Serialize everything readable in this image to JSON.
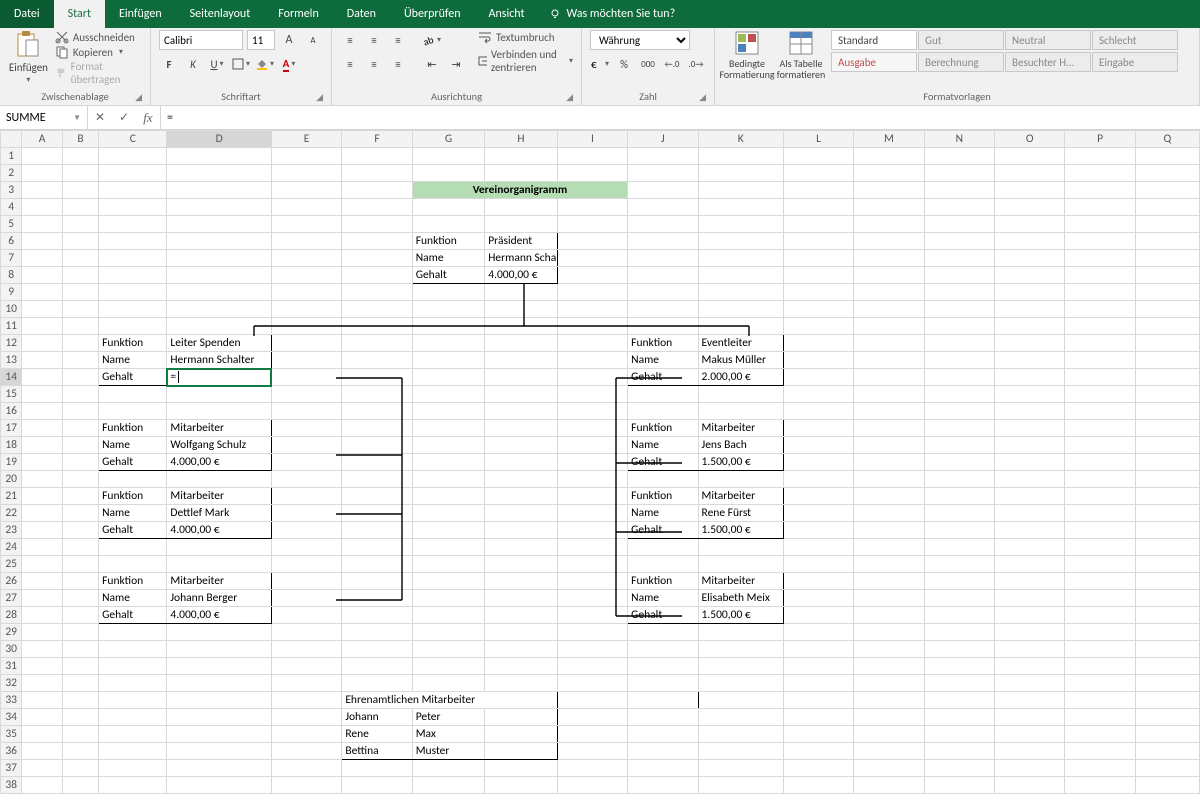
{
  "tabs": {
    "file": "Datei",
    "home": "Start",
    "insert": "Einfügen",
    "layout": "Seitenlayout",
    "formulas": "Formeln",
    "data": "Daten",
    "review": "Überprüfen",
    "view": "Ansicht",
    "tell": "Was möchten Sie tun?"
  },
  "ribbon": {
    "clipboard": {
      "paste": "Einfügen",
      "cut": "Ausschneiden",
      "copy": "Kopieren",
      "painter": "Format übertragen",
      "label": "Zwischenablage"
    },
    "font": {
      "name": "Calibri",
      "size": "11",
      "label": "Schriftart"
    },
    "align": {
      "wrap": "Textumbruch",
      "merge": "Verbinden und zentrieren",
      "label": "Ausrichtung"
    },
    "number": {
      "format": "Währung",
      "label": "Zahl"
    },
    "styles": {
      "cond": "Bedingte Formatierung",
      "table": "Als Tabelle formatieren",
      "a": "Standard",
      "b": "Gut",
      "c": "Neutral",
      "d": "Schlecht",
      "e": "Ausgabe",
      "f": "Berechnung",
      "g": "Besuchter H...",
      "h": "Eingabe",
      "label": "Formatvorlagen"
    }
  },
  "namebox": "SUMME",
  "formula": "=",
  "columns": [
    "A",
    "B",
    "C",
    "D",
    "E",
    "F",
    "G",
    "H",
    "I",
    "J",
    "K",
    "L",
    "M",
    "N",
    "O",
    "P",
    "Q"
  ],
  "title": "Vereinorganigramm",
  "labels": {
    "funktion": "Funktion",
    "name": "Name",
    "gehalt": "Gehalt",
    "ehren": "Ehrenamtlichen Mitarbeiter"
  },
  "boxes": {
    "top": {
      "f": "Präsident",
      "n": "Hermann Schalter",
      "g": "4.000,00 €"
    },
    "l1": {
      "f": "Leiter Spenden",
      "n": "Hermann Schalter",
      "g": "="
    },
    "r1": {
      "f": "Eventleiter",
      "n": "Makus Müller",
      "g": "2.000,00 €"
    },
    "l2": {
      "f": "Mitarbeiter",
      "n": "Wolfgang Schulz",
      "g": "4.000,00 €"
    },
    "r2": {
      "f": "Mitarbeiter",
      "n": "Jens Bach",
      "g": "1.500,00 €"
    },
    "l3": {
      "f": "Mitarbeiter",
      "n": "Dettlef Mark",
      "g": "4.000,00 €"
    },
    "r3": {
      "f": "Mitarbeiter",
      "n": "Rene Fürst",
      "g": "1.500,00 €"
    },
    "l4": {
      "f": "Mitarbeiter",
      "n": "Johann Berger",
      "g": "4.000,00 €"
    },
    "r4": {
      "f": "Mitarbeiter",
      "n": "Elisabeth Meix",
      "g": "1.500,00 €"
    }
  },
  "ehren": {
    "c1": [
      "Johann",
      "Rene",
      "Bettina"
    ],
    "c2": [
      "Peter",
      "Max",
      "Muster"
    ]
  }
}
